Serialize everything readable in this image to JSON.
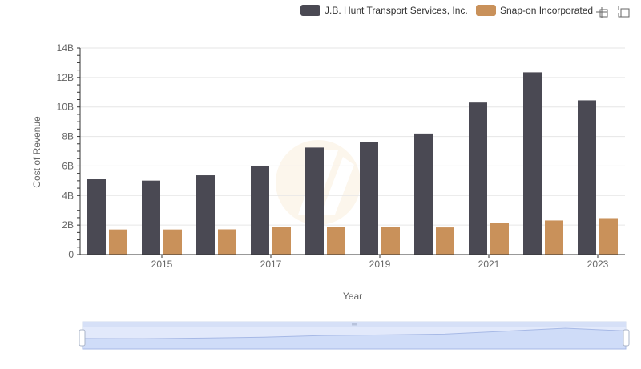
{
  "chart_data": {
    "type": "bar",
    "title": "",
    "xlabel": "Year",
    "ylabel": "Cost of Revenue",
    "x": [
      2014,
      2015,
      2016,
      2017,
      2018,
      2019,
      2020,
      2021,
      2022,
      2023
    ],
    "x_tick_labels": [
      "2015",
      "2017",
      "2019",
      "2021",
      "2023"
    ],
    "y_tick_labels": [
      "0",
      "2B",
      "4B",
      "6B",
      "8B",
      "10B",
      "12B",
      "14B"
    ],
    "ylim": [
      0,
      14000000000
    ],
    "grid": true,
    "legend_position": "top-right",
    "series": [
      {
        "name": "J.B. Hunt Transport Services, Inc.",
        "color": "#4a4953",
        "values": [
          5100000000,
          5010000000,
          5370000000,
          6000000000,
          7250000000,
          7650000000,
          8200000000,
          10300000000,
          12350000000,
          10450000000
        ]
      },
      {
        "name": "Snap-on Incorporated",
        "color": "#c9915a",
        "values": [
          1700000000,
          1700000000,
          1710000000,
          1860000000,
          1870000000,
          1890000000,
          1840000000,
          2140000000,
          2310000000,
          2470000000
        ]
      }
    ]
  },
  "toolbar": {
    "icons": [
      "zoom-select-icon",
      "restore-icon"
    ]
  },
  "zoom": {
    "start": 0,
    "end": 100
  }
}
